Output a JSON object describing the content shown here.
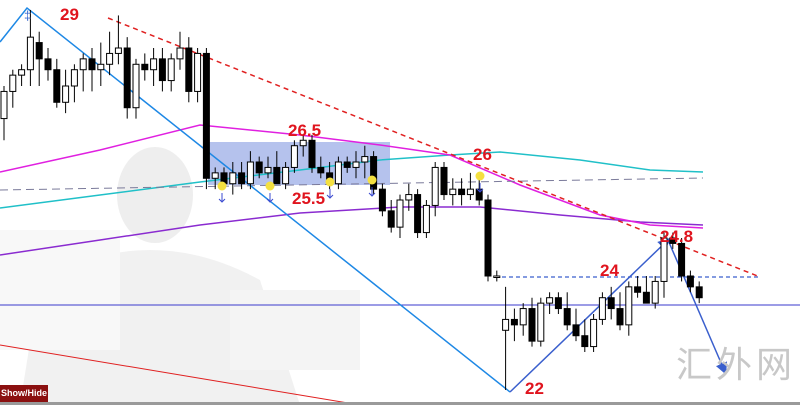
{
  "chart_data": {
    "type": "candlestick",
    "title": "",
    "xlabel": "",
    "ylabel": "",
    "ylim": [
      22,
      29
    ],
    "grid": false,
    "legend": "none",
    "candles_ohlc": [
      [
        27.0,
        27.6,
        26.6,
        27.5
      ],
      [
        27.5,
        27.9,
        27.2,
        27.8
      ],
      [
        27.8,
        28.0,
        27.6,
        27.9
      ],
      [
        27.9,
        29.0,
        27.6,
        28.5
      ],
      [
        28.4,
        28.6,
        27.6,
        28.1
      ],
      [
        28.1,
        28.3,
        27.7,
        27.9
      ],
      [
        27.9,
        28.1,
        27.2,
        27.3
      ],
      [
        27.3,
        27.9,
        27.1,
        27.6
      ],
      [
        27.6,
        28.0,
        27.3,
        27.9
      ],
      [
        27.9,
        28.2,
        27.5,
        28.1
      ],
      [
        28.1,
        28.3,
        27.5,
        27.9
      ],
      [
        27.9,
        28.4,
        27.6,
        28.0
      ],
      [
        28.0,
        28.6,
        27.8,
        28.2
      ],
      [
        28.2,
        28.9,
        28.0,
        28.3
      ],
      [
        28.3,
        28.5,
        27.0,
        27.2
      ],
      [
        27.2,
        28.1,
        27.0,
        28.0
      ],
      [
        28.0,
        28.2,
        27.7,
        27.9
      ],
      [
        27.9,
        28.3,
        27.6,
        28.1
      ],
      [
        28.1,
        28.3,
        27.5,
        27.7
      ],
      [
        27.7,
        28.2,
        27.5,
        28.1
      ],
      [
        28.1,
        28.6,
        27.9,
        28.3
      ],
      [
        28.3,
        28.5,
        27.3,
        27.5
      ],
      [
        27.5,
        28.3,
        27.3,
        28.2
      ],
      [
        28.2,
        28.3,
        25.7,
        25.9
      ],
      [
        25.9,
        26.1,
        25.7,
        26.0
      ],
      [
        26.0,
        26.1,
        25.7,
        25.8
      ],
      [
        25.8,
        26.2,
        25.6,
        26.0
      ],
      [
        26.0,
        26.2,
        25.7,
        25.8
      ],
      [
        25.8,
        26.4,
        25.7,
        26.2
      ],
      [
        26.2,
        26.3,
        25.9,
        26.0
      ],
      [
        26.0,
        26.3,
        25.9,
        26.1
      ],
      [
        26.1,
        26.4,
        25.8,
        25.8
      ],
      [
        25.8,
        26.2,
        25.7,
        26.1
      ],
      [
        26.1,
        26.6,
        26.0,
        26.5
      ],
      [
        26.5,
        26.7,
        26.3,
        26.6
      ],
      [
        26.6,
        26.7,
        26.0,
        26.1
      ],
      [
        26.1,
        26.3,
        25.9,
        26.0
      ],
      [
        26.0,
        26.2,
        25.7,
        25.8
      ],
      [
        25.8,
        26.3,
        25.7,
        26.2
      ],
      [
        26.2,
        26.3,
        26.0,
        26.1
      ],
      [
        26.1,
        26.4,
        25.9,
        26.2
      ],
      [
        26.2,
        26.5,
        25.9,
        26.3
      ],
      [
        26.3,
        26.4,
        25.6,
        25.7
      ],
      [
        25.7,
        25.8,
        25.2,
        25.3
      ],
      [
        25.3,
        25.5,
        24.9,
        25.0
      ],
      [
        25.0,
        25.6,
        24.8,
        25.5
      ],
      [
        25.5,
        25.8,
        25.3,
        25.6
      ],
      [
        25.6,
        25.7,
        24.8,
        24.9
      ],
      [
        24.9,
        25.5,
        24.8,
        25.4
      ],
      [
        25.4,
        26.2,
        25.2,
        26.1
      ],
      [
        26.1,
        26.2,
        25.5,
        25.6
      ],
      [
        25.6,
        25.9,
        25.4,
        25.7
      ],
      [
        25.7,
        25.9,
        25.4,
        25.6
      ],
      [
        25.6,
        26.0,
        25.5,
        25.7
      ],
      [
        25.7,
        26.0,
        25.4,
        25.5
      ],
      [
        25.5,
        25.6,
        24.0,
        24.1
      ],
      [
        24.1,
        24.2,
        24.0,
        24.1
      ],
      [
        23.1,
        23.9,
        22.0,
        23.3
      ],
      [
        23.3,
        23.5,
        22.9,
        23.2
      ],
      [
        23.2,
        23.6,
        23.0,
        23.5
      ],
      [
        23.5,
        23.7,
        22.8,
        22.9
      ],
      [
        22.9,
        23.7,
        22.8,
        23.6
      ],
      [
        23.6,
        23.8,
        23.4,
        23.7
      ],
      [
        23.7,
        23.8,
        23.4,
        23.5
      ],
      [
        23.5,
        23.8,
        23.1,
        23.2
      ],
      [
        23.2,
        23.5,
        22.9,
        23.0
      ],
      [
        23.0,
        23.3,
        22.7,
        22.8
      ],
      [
        22.8,
        23.4,
        22.7,
        23.3
      ],
      [
        23.3,
        23.8,
        23.2,
        23.7
      ],
      [
        23.7,
        23.9,
        23.3,
        23.5
      ],
      [
        23.5,
        23.8,
        23.1,
        23.2
      ],
      [
        23.2,
        24.0,
        23.0,
        23.9
      ],
      [
        23.9,
        24.1,
        23.7,
        23.8
      ],
      [
        23.8,
        24.1,
        23.6,
        23.6
      ],
      [
        23.6,
        24.1,
        23.5,
        24.0
      ],
      [
        24.0,
        24.9,
        23.7,
        24.8
      ],
      [
        24.8,
        24.9,
        24.6,
        24.7
      ],
      [
        24.7,
        24.8,
        24.0,
        24.1
      ],
      [
        24.1,
        24.2,
        23.8,
        23.9
      ],
      [
        23.9,
        24.0,
        23.6,
        23.7
      ]
    ],
    "annotations": [
      {
        "text": "29"
      },
      {
        "text": "26.5"
      },
      {
        "text": "25.5"
      },
      {
        "text": "26"
      },
      {
        "text": "24"
      },
      {
        "text": "24.8"
      },
      {
        "text": "22"
      }
    ],
    "colors": {
      "up_candle": "#ffffff",
      "down_candle": "#000000",
      "annotation": "#e0141e",
      "zigzag": "#1e88e5",
      "projection": "#3a5fcd",
      "trendline": "#e02020",
      "ma_magenta": "#e020e0",
      "ma_cyan": "#20c0c8",
      "ma_purple": "#8a2bd0",
      "support_line": "#3a3acd",
      "range_box": "#5a78d8"
    }
  },
  "controls": {
    "show_hide_label": "Show/Hide"
  },
  "watermark": "汇外网"
}
